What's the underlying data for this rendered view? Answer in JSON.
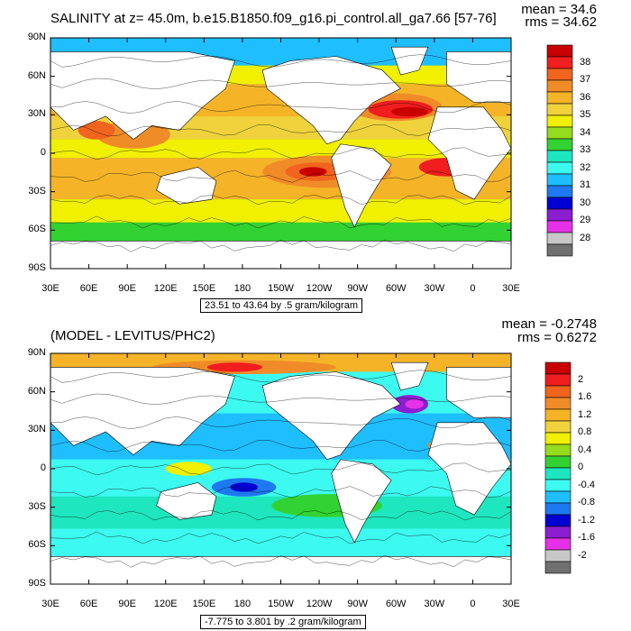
{
  "panel1": {
    "title": "SALINITY at z=  45.0m, b.e15.B1850.f09_g16.pi_control.all_ga7.66 [57-76]",
    "mean_text": "mean = 34.6",
    "rms_text": "rms = 34.62",
    "contour_info": "23.51 to 43.64 by .5 gram/kilogram",
    "colorbar_labels": [
      "38",
      "37",
      "36",
      "35",
      "34",
      "33",
      "32",
      "31",
      "30",
      "29",
      "28"
    ],
    "colors": [
      "#c80000",
      "#f01e1e",
      "#f0641e",
      "#f08c28",
      "#f5b428",
      "#f0d23c",
      "#f0f000",
      "#96dc1e",
      "#32d232",
      "#1ee6be",
      "#3cfaf0",
      "#1ebeff",
      "#1e78f0",
      "#0000d2",
      "#8c1ed2",
      "#e632e6",
      "#c8c8c8",
      "#707070"
    ]
  },
  "panel2": {
    "title": "(MODEL - LEVITUS/PHC2)",
    "mean_text": "mean = -0.2748",
    "rms_text": "rms = 0.6272",
    "contour_info": "-7.775 to 3.801 by .2 gram/kilogram",
    "colorbar_labels": [
      "2",
      "1.6",
      "1.2",
      "0.8",
      "0.4",
      "0",
      "-0.4",
      "-0.8",
      "-1.2",
      "-1.6",
      "-2"
    ],
    "colors": [
      "#c80000",
      "#f01e1e",
      "#f0641e",
      "#f08c28",
      "#f5b428",
      "#f0d23c",
      "#f0f000",
      "#96dc1e",
      "#32d232",
      "#1ee6be",
      "#3cfaf0",
      "#1ebeff",
      "#1e78f0",
      "#0000d2",
      "#8c1ed2",
      "#e632e6",
      "#c8c8c8",
      "#707070"
    ]
  },
  "axes": {
    "lat_labels": [
      "90N",
      "60N",
      "30N",
      "0",
      "30S",
      "60S",
      "90S"
    ],
    "lon_labels": [
      "30E",
      "60E",
      "90E",
      "120E",
      "150E",
      "180",
      "150W",
      "120W",
      "90W",
      "60W",
      "30W",
      "0",
      "30E"
    ]
  },
  "colors": {
    "land": "#ffffff",
    "contour": "#000000"
  }
}
